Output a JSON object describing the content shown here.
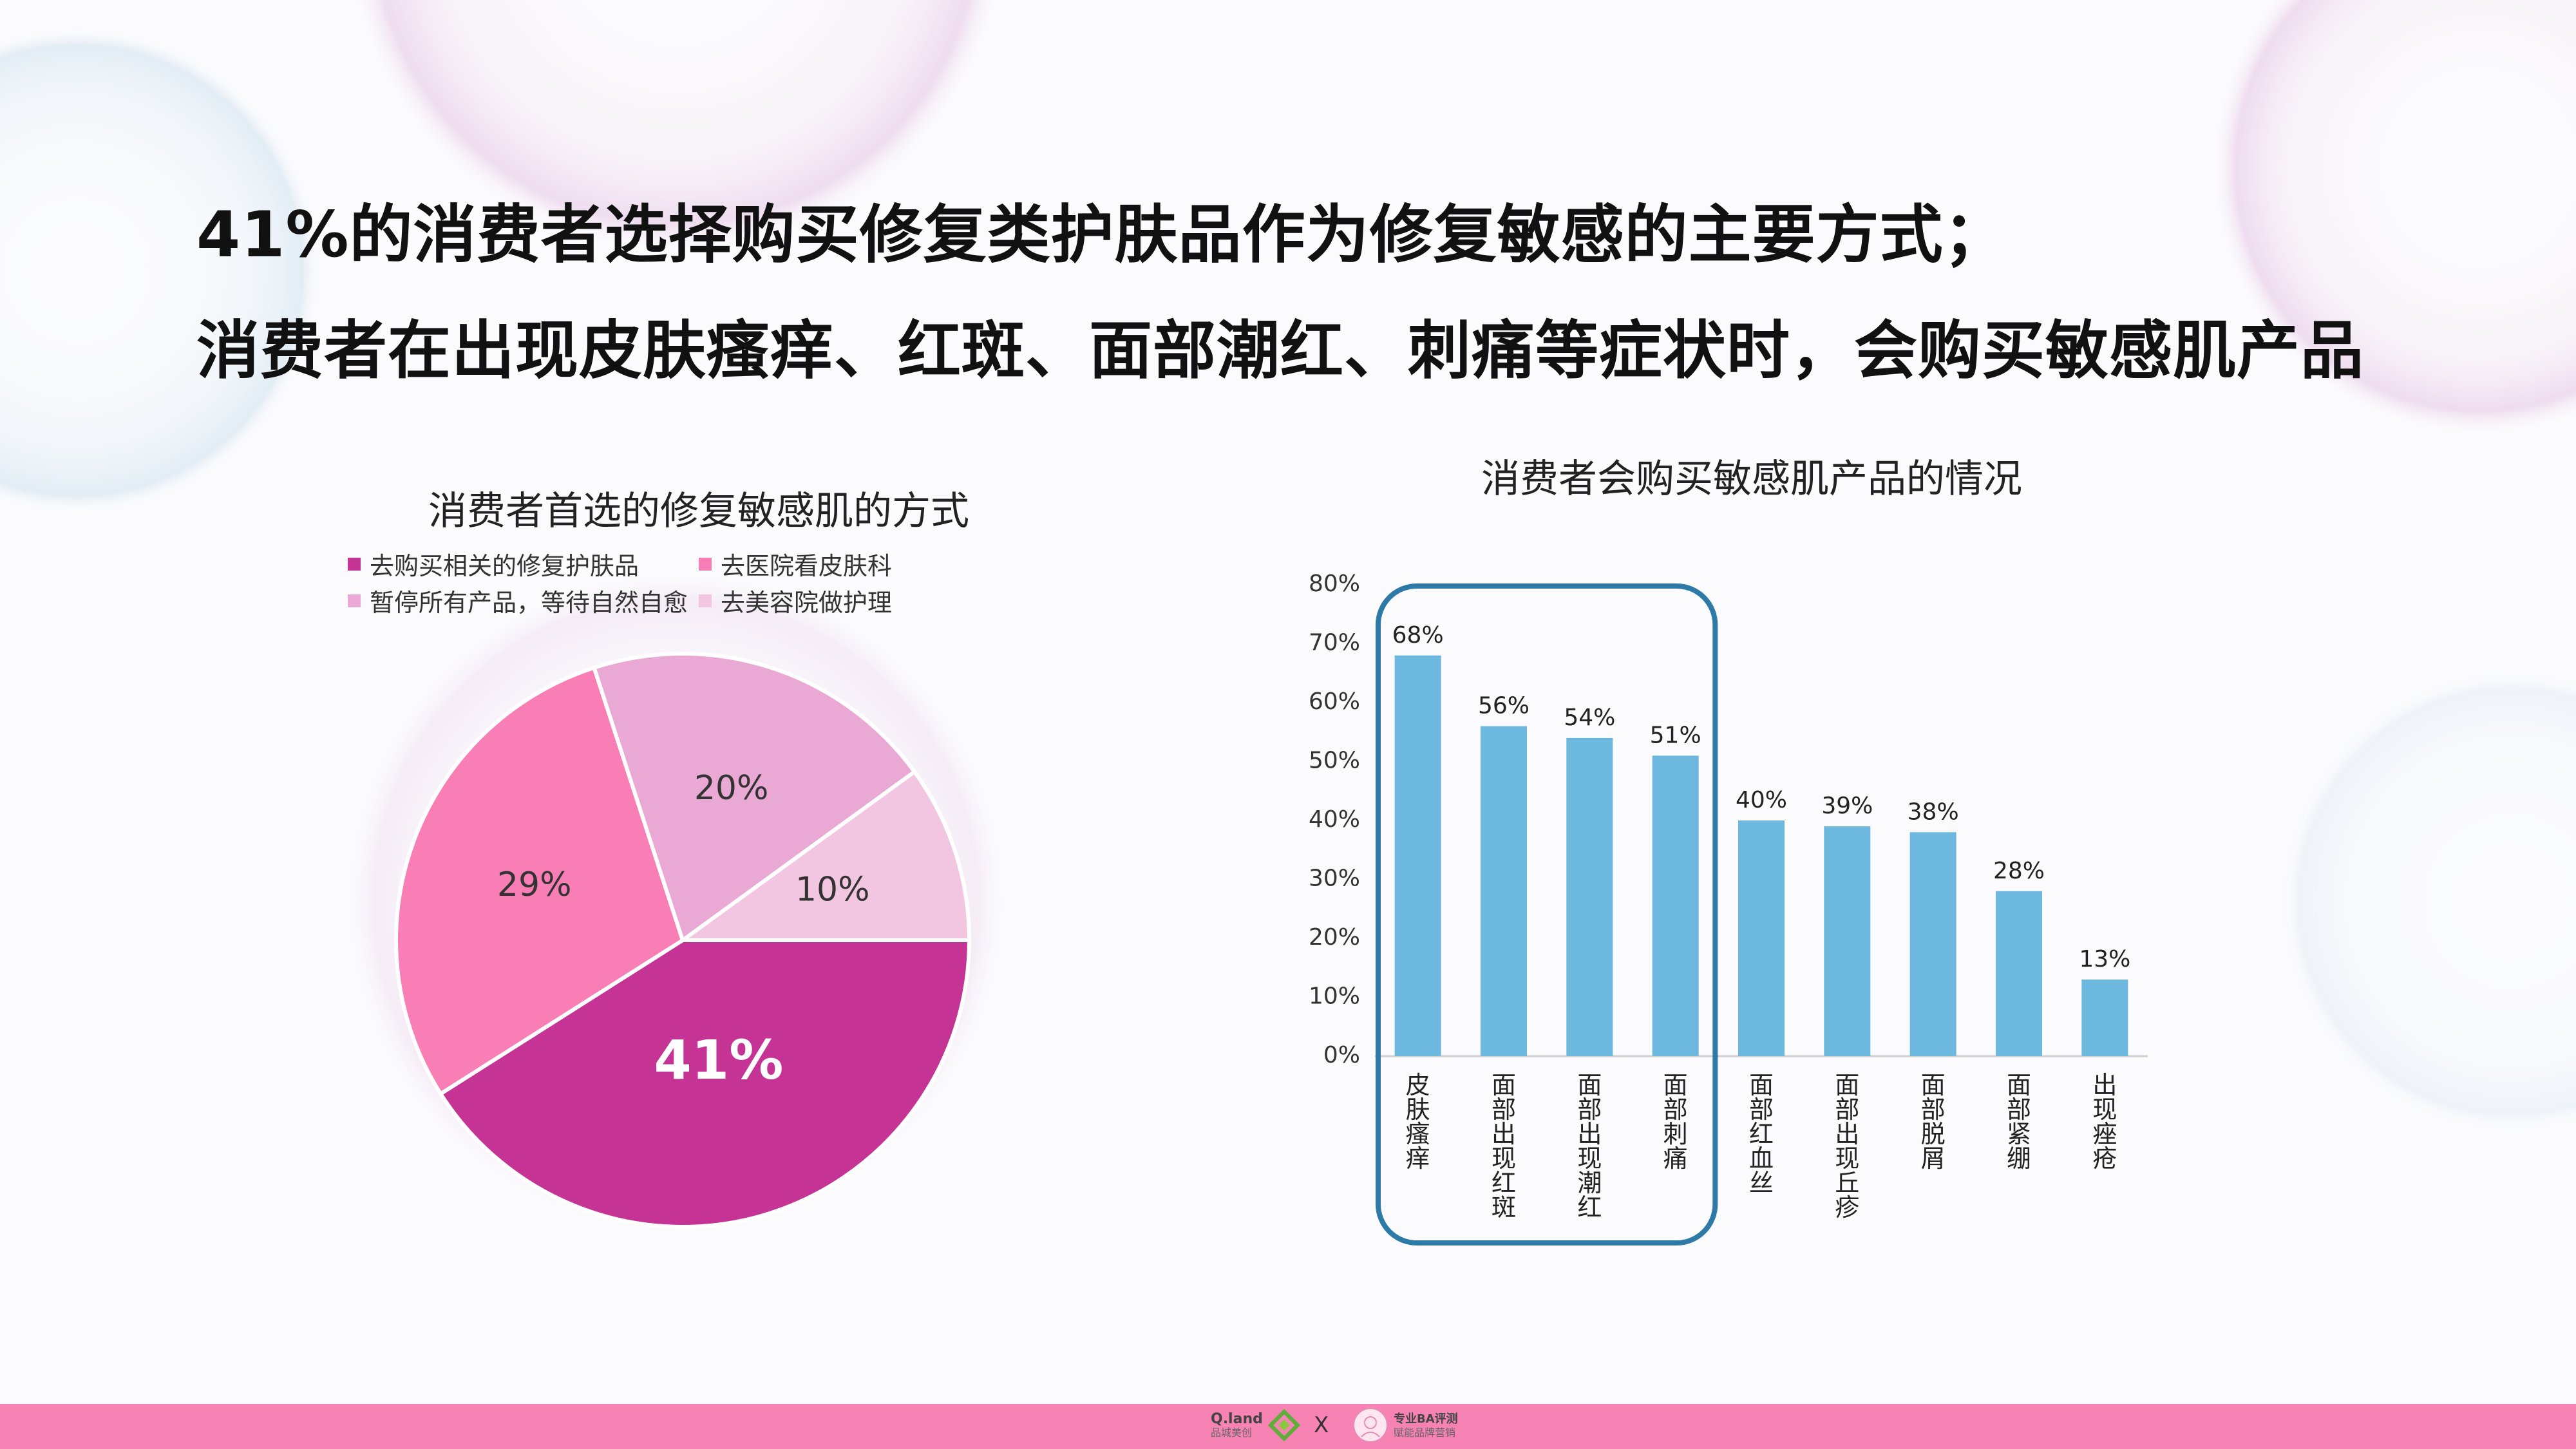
{
  "headline": {
    "line1": "41%的消费者选择购买修复类护肤品作为修复敏感的主要方式；",
    "line2": "消费者在出现皮肤瘙痒、红斑、面部潮红、刺痛等症状时，会购买敏感肌产品"
  },
  "chart_data": [
    {
      "type": "pie",
      "title": "消费者首选的修复敏感肌的方式",
      "legend_position": "top",
      "slices": [
        {
          "name": "去购买相关的修复护肤品",
          "value": 41,
          "label": "41%",
          "color": "#c53494"
        },
        {
          "name": "去医院看皮肤科",
          "value": 29,
          "label": "29%",
          "color": "#f97eb6"
        },
        {
          "name": "暂停所有产品，等待自然自愈",
          "value": 20,
          "label": "20%",
          "color": "#e9a9d4"
        },
        {
          "name": "去美容院做护理",
          "value": 10,
          "label": "10%",
          "color": "#f2c6e1"
        }
      ]
    },
    {
      "type": "bar",
      "title": "消费者会购买敏感肌产品的情况",
      "categories": [
        "皮肤瘙痒",
        "面部出现红斑",
        "面部出现潮红",
        "面部刺痛",
        "面部红血丝",
        "面部出现丘疹",
        "面部脱屑",
        "面部紧绷",
        "出现痤疮"
      ],
      "values": [
        68,
        56,
        54,
        51,
        40,
        39,
        38,
        28,
        13
      ],
      "data_labels": [
        "68%",
        "56%",
        "54%",
        "51%",
        "40%",
        "39%",
        "38%",
        "28%",
        "13%"
      ],
      "ylim": [
        0,
        80
      ],
      "yticks": [
        "0%",
        "10%",
        "20%",
        "30%",
        "40%",
        "50%",
        "60%",
        "70%",
        "80%"
      ],
      "bar_color": "#6cb8df",
      "highlight": {
        "from_index": 0,
        "to_index": 3,
        "color": "#2e7aa6"
      },
      "grid": false
    }
  ],
  "footer": {
    "left_logo_name": "Q.land",
    "left_logo_sub": "品城美创",
    "separator": "X",
    "right_logo_name": "专业BA评测",
    "right_logo_sub": "赋能品牌营销",
    "bar_color": "#f783b4"
  }
}
